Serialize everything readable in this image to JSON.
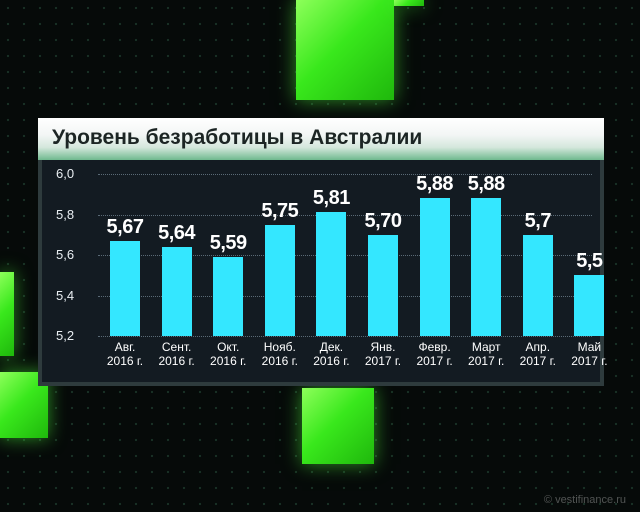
{
  "title": "Уровень безработицы в Австралии",
  "watermark": "© vestifinance.ru",
  "chart_data": {
    "type": "bar",
    "title": "Уровень безработицы в Австралии",
    "ylim": [
      5.2,
      6.0
    ],
    "yticks": [
      "5,2",
      "5,4",
      "5,6",
      "5,8",
      "6,0"
    ],
    "ytick_values": [
      5.2,
      5.4,
      5.6,
      5.8,
      6.0
    ],
    "grid": true,
    "categories": [
      [
        "Авг.",
        "2016 г."
      ],
      [
        "Сент.",
        "2016 г."
      ],
      [
        "Окт.",
        "2016 г."
      ],
      [
        "Нояб.",
        "2016 г."
      ],
      [
        "Дек.",
        "2016 г."
      ],
      [
        "Янв.",
        "2017 г."
      ],
      [
        "Февр.",
        "2017 г."
      ],
      [
        "Март",
        "2017 г."
      ],
      [
        "Апр.",
        "2017 г."
      ],
      [
        "Май",
        "2017 г."
      ]
    ],
    "values": [
      5.67,
      5.64,
      5.59,
      5.75,
      5.81,
      5.7,
      5.88,
      5.88,
      5.7,
      5.5
    ],
    "value_labels": [
      "5,67",
      "5,64",
      "5,59",
      "5,75",
      "5,81",
      "5,70",
      "5,88",
      "5,88",
      "5,7",
      "5,5"
    ],
    "bar_color": "#34e7ff"
  }
}
